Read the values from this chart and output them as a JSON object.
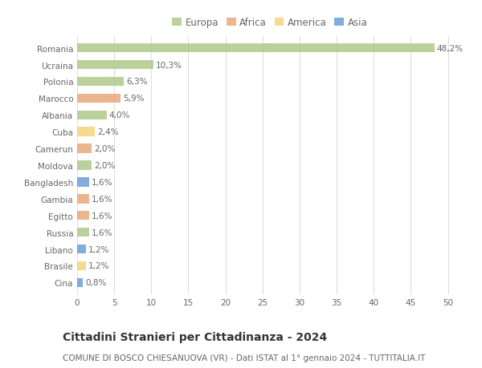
{
  "countries": [
    "Romania",
    "Ucraina",
    "Polonia",
    "Marocco",
    "Albania",
    "Cuba",
    "Camerun",
    "Moldova",
    "Bangladesh",
    "Gambia",
    "Egitto",
    "Russia",
    "Libano",
    "Brasile",
    "Cina"
  ],
  "values": [
    48.2,
    10.3,
    6.3,
    5.9,
    4.0,
    2.4,
    2.0,
    2.0,
    1.6,
    1.6,
    1.6,
    1.6,
    1.2,
    1.2,
    0.8
  ],
  "labels": [
    "48,2%",
    "10,3%",
    "6,3%",
    "5,9%",
    "4,0%",
    "2,4%",
    "2,0%",
    "2,0%",
    "1,6%",
    "1,6%",
    "1,6%",
    "1,6%",
    "1,2%",
    "1,2%",
    "0,8%"
  ],
  "continents": [
    "Europa",
    "Europa",
    "Europa",
    "Africa",
    "Europa",
    "America",
    "Africa",
    "Europa",
    "Asia",
    "Africa",
    "Africa",
    "Europa",
    "Asia",
    "America",
    "Asia"
  ],
  "continent_colors": {
    "Europa": "#aec98a",
    "Africa": "#e8a87c",
    "America": "#f5d57a",
    "Asia": "#6a9fd8"
  },
  "legend_order": [
    "Europa",
    "Africa",
    "America",
    "Asia"
  ],
  "xlim": [
    0,
    52
  ],
  "xticks": [
    0,
    5,
    10,
    15,
    20,
    25,
    30,
    35,
    40,
    45,
    50
  ],
  "title": "Cittadini Stranieri per Cittadinanza - 2024",
  "subtitle": "COMUNE DI BOSCO CHIESANUOVA (VR) - Dati ISTAT al 1° gennaio 2024 - TUTTITALIA.IT",
  "background_color": "#ffffff",
  "grid_color": "#dddddd",
  "bar_height": 0.55,
  "label_fontsize": 7.5,
  "tick_fontsize": 7.5,
  "title_fontsize": 10,
  "subtitle_fontsize": 7.5,
  "legend_fontsize": 8.5
}
